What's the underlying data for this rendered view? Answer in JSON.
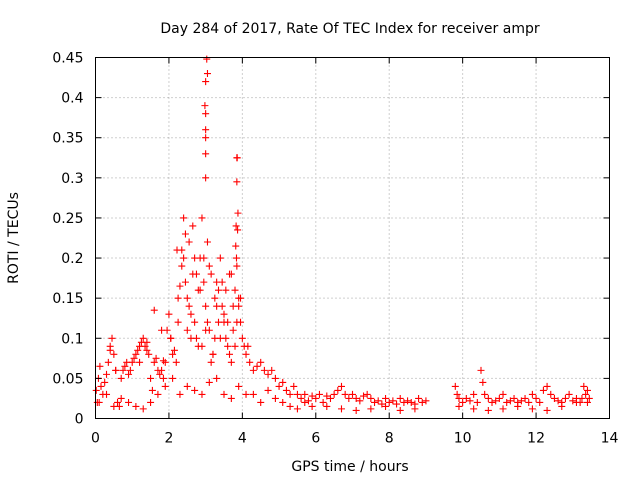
{
  "chart_data": {
    "type": "scatter",
    "title": "Day 284 of 2017, Rate Of TEC Index for receiver ampr",
    "xlabel": "GPS time / hours",
    "ylabel": "ROTI / TECUs",
    "xlim": [
      0,
      14
    ],
    "ylim": [
      0,
      0.45
    ],
    "xticks": [
      0,
      2,
      4,
      6,
      8,
      10,
      12,
      14
    ],
    "yticks": [
      0,
      0.05,
      0.1,
      0.15,
      0.2,
      0.25,
      0.3,
      0.35,
      0.4,
      0.45
    ],
    "xtick_labels": [
      "0",
      "2",
      "4",
      "6",
      "8",
      "10",
      "12",
      "14"
    ],
    "ytick_labels": [
      "0",
      "0.05",
      "0.1",
      "0.15",
      "0.2",
      "0.25",
      "0.3",
      "0.35",
      "0.4",
      "0.45"
    ],
    "grid": true,
    "marker": "+",
    "series": [
      {
        "name": "ROTI",
        "color": "#ff0000",
        "x": [
          0.02,
          0.05,
          0.08,
          0.12,
          0.15,
          0.2,
          0.25,
          0.3,
          0.35,
          0.4,
          0.45,
          0.5,
          0.55,
          0.6,
          0.65,
          0.7,
          0.75,
          0.8,
          0.85,
          0.9,
          0.95,
          1.0,
          1.05,
          1.1,
          1.15,
          1.2,
          1.25,
          1.3,
          1.35,
          1.4,
          1.45,
          1.5,
          1.55,
          1.6,
          1.65,
          1.7,
          1.75,
          1.8,
          1.85,
          1.9,
          1.95,
          2.0,
          2.05,
          2.1,
          2.15,
          2.2,
          2.25,
          2.3,
          2.35,
          2.4,
          2.45,
          2.5,
          2.55,
          2.6,
          2.65,
          2.7,
          2.75,
          2.8,
          2.85,
          2.9,
          2.95,
          3.0,
          3.05,
          3.1,
          3.15,
          3.2,
          3.25,
          3.3,
          3.35,
          3.4,
          3.45,
          3.5,
          3.55,
          3.6,
          3.65,
          3.7,
          3.75,
          3.8,
          3.85,
          3.9,
          3.95,
          4.0,
          4.05,
          4.1,
          4.15,
          4.2,
          4.3,
          4.4,
          4.5,
          4.6,
          4.7,
          4.8,
          4.9,
          5.0,
          5.1,
          5.2,
          5.3,
          5.4,
          5.5,
          5.6,
          5.7,
          5.8,
          5.9,
          6.0,
          6.1,
          6.2,
          6.3,
          6.4,
          6.5,
          6.6,
          6.7,
          6.8,
          6.9,
          7.0,
          7.1,
          7.2,
          7.3,
          7.4,
          7.5,
          7.6,
          7.7,
          7.8,
          7.9,
          8.0,
          8.1,
          8.2,
          8.3,
          8.4,
          8.5,
          8.6,
          8.7,
          8.8,
          8.9,
          9.0,
          9.8,
          9.85,
          9.9,
          10.0,
          10.1,
          10.2,
          10.3,
          10.4,
          10.5,
          10.55,
          10.6,
          10.7,
          10.8,
          10.9,
          11.0,
          11.1,
          11.2,
          11.3,
          11.4,
          11.5,
          11.6,
          11.7,
          11.8,
          11.9,
          12.0,
          12.1,
          12.2,
          12.3,
          12.4,
          12.5,
          12.6,
          12.7,
          12.8,
          12.9,
          13.0,
          13.1,
          13.2,
          13.25,
          13.3,
          13.35,
          13.4,
          13.45,
          0.1,
          0.3,
          0.5,
          0.7,
          0.9,
          1.1,
          1.3,
          1.5,
          1.7,
          1.9,
          2.1,
          2.3,
          2.5,
          2.7,
          2.9,
          3.1,
          3.3,
          3.5,
          3.7,
          3.9,
          4.1,
          4.3,
          4.5,
          4.7,
          4.9,
          5.1,
          5.3,
          5.5,
          5.7,
          5.9,
          6.3,
          6.7,
          7.1,
          7.5,
          7.9,
          8.3,
          8.7,
          9.9,
          10.3,
          10.7,
          11.1,
          11.5,
          11.9,
          12.3,
          12.7,
          13.1,
          13.4,
          2.35,
          2.45,
          2.55,
          2.65,
          2.75,
          2.85,
          2.95,
          3.05,
          3.15,
          3.25,
          3.35,
          3.45,
          3.55,
          3.65,
          3.75,
          3.85,
          3.95,
          2.6,
          2.8,
          3.0,
          3.2,
          3.4,
          3.6,
          3.8,
          2.22,
          2.4,
          2.7,
          3.1,
          3.3,
          3.5,
          3.7,
          3.9,
          2.25,
          2.5,
          2.9,
          3.0,
          3.0,
          3.0,
          3.0,
          3.0,
          3.05,
          3.03,
          3.0,
          2.98,
          3.85,
          3.85,
          3.88,
          3.83,
          3.87,
          3.84,
          3.82,
          3.86,
          1.6,
          1.8,
          0.4,
          0.55,
          1.2,
          1.4,
          1.85,
          2.05
        ],
        "y": [
          0.035,
          0.02,
          0.05,
          0.065,
          0.04,
          0.03,
          0.045,
          0.055,
          0.07,
          0.09,
          0.1,
          0.08,
          0.06,
          0.02,
          0.015,
          0.05,
          0.06,
          0.065,
          0.07,
          0.055,
          0.06,
          0.07,
          0.075,
          0.08,
          0.085,
          0.09,
          0.095,
          0.1,
          0.09,
          0.085,
          0.08,
          0.05,
          0.035,
          0.07,
          0.075,
          0.06,
          0.055,
          0.06,
          0.05,
          0.07,
          0.11,
          0.13,
          0.1,
          0.08,
          0.085,
          0.07,
          0.12,
          0.165,
          0.19,
          0.2,
          0.17,
          0.15,
          0.14,
          0.13,
          0.18,
          0.12,
          0.1,
          0.16,
          0.2,
          0.25,
          0.17,
          0.14,
          0.12,
          0.11,
          0.07,
          0.08,
          0.1,
          0.14,
          0.16,
          0.2,
          0.17,
          0.12,
          0.1,
          0.09,
          0.08,
          0.07,
          0.11,
          0.16,
          0.19,
          0.14,
          0.12,
          0.1,
          0.09,
          0.08,
          0.09,
          0.07,
          0.06,
          0.065,
          0.07,
          0.06,
          0.055,
          0.06,
          0.05,
          0.04,
          0.045,
          0.035,
          0.03,
          0.04,
          0.03,
          0.025,
          0.03,
          0.022,
          0.028,
          0.025,
          0.03,
          0.02,
          0.028,
          0.025,
          0.03,
          0.035,
          0.04,
          0.03,
          0.025,
          0.03,
          0.025,
          0.022,
          0.028,
          0.03,
          0.025,
          0.02,
          0.022,
          0.018,
          0.025,
          0.02,
          0.022,
          0.018,
          0.025,
          0.02,
          0.022,
          0.02,
          0.018,
          0.025,
          0.02,
          0.022,
          0.04,
          0.03,
          0.025,
          0.02,
          0.025,
          0.022,
          0.03,
          0.02,
          0.06,
          0.045,
          0.03,
          0.025,
          0.02,
          0.022,
          0.025,
          0.03,
          0.02,
          0.022,
          0.025,
          0.02,
          0.022,
          0.025,
          0.02,
          0.03,
          0.025,
          0.02,
          0.035,
          0.04,
          0.03,
          0.025,
          0.022,
          0.02,
          0.025,
          0.03,
          0.022,
          0.025,
          0.02,
          0.025,
          0.04,
          0.03,
          0.035,
          0.025,
          0.02,
          0.03,
          0.015,
          0.025,
          0.02,
          0.015,
          0.012,
          0.02,
          0.03,
          0.04,
          0.05,
          0.03,
          0.04,
          0.035,
          0.03,
          0.045,
          0.05,
          0.03,
          0.025,
          0.04,
          0.03,
          0.03,
          0.02,
          0.035,
          0.025,
          0.02,
          0.015,
          0.012,
          0.02,
          0.015,
          0.015,
          0.012,
          0.01,
          0.012,
          0.015,
          0.01,
          0.012,
          0.015,
          0.012,
          0.01,
          0.012,
          0.015,
          0.012,
          0.01,
          0.015,
          0.02,
          0.02,
          0.21,
          0.23,
          0.22,
          0.24,
          0.18,
          0.16,
          0.2,
          0.22,
          0.18,
          0.15,
          0.12,
          0.14,
          0.16,
          0.18,
          0.14,
          0.12,
          0.15,
          0.1,
          0.09,
          0.11,
          0.08,
          0.1,
          0.12,
          0.09,
          0.21,
          0.25,
          0.2,
          0.19,
          0.17,
          0.13,
          0.18,
          0.15,
          0.15,
          0.11,
          0.09,
          0.3,
          0.33,
          0.36,
          0.38,
          0.42,
          0.43,
          0.448,
          0.35,
          0.39,
          0.325,
          0.295,
          0.256,
          0.24,
          0.235,
          0.2,
          0.215,
          0.325,
          0.135,
          0.11,
          0.085,
          0.06,
          0.07,
          0.095,
          0.072,
          0.1
        ]
      }
    ]
  }
}
